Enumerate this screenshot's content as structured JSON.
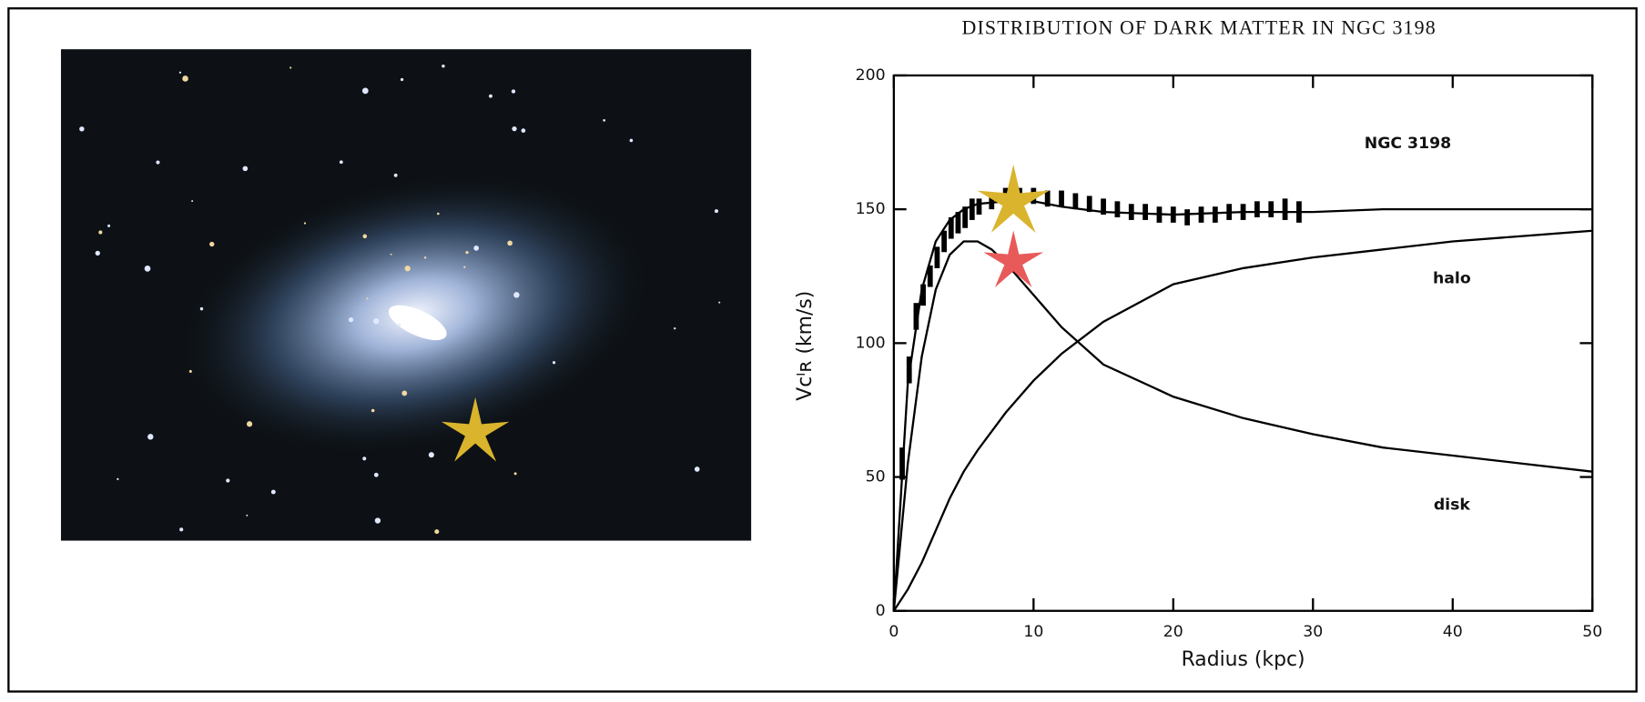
{
  "chart_data": {
    "type": "line",
    "title": "DISTRIBUTION OF DARK MATTER IN NGC 3198",
    "xlabel": "Radius (kpc)",
    "ylabel": "Vᴄᴵʀ (km/s)",
    "annotation": "NGC 3198",
    "xlim": [
      0,
      50
    ],
    "xticks": [
      0,
      10,
      20,
      30,
      40,
      50
    ],
    "ylim": [
      0,
      200
    ],
    "yticks": [
      0,
      50,
      100,
      150,
      200
    ],
    "series": [
      {
        "style": "errorbar",
        "color": "#000000",
        "x": [
          0.6,
          1.1,
          1.6,
          2.1,
          2.6,
          3.1,
          3.6,
          4.1,
          4.6,
          5.1,
          5.6,
          6.1,
          7,
          8,
          9,
          10,
          11,
          12,
          13,
          14,
          15,
          16,
          17,
          18,
          19,
          20,
          21,
          22,
          23,
          24,
          25,
          26,
          27,
          28,
          29
        ],
        "values": [
          55,
          90,
          110,
          118,
          125,
          132,
          138,
          143,
          145,
          147,
          150,
          151,
          153,
          155,
          155,
          155,
          154,
          154,
          153,
          152,
          151,
          150,
          149,
          149,
          148,
          148,
          147,
          148,
          148,
          149,
          149,
          150,
          150,
          150,
          149
        ],
        "errors": [
          6,
          5,
          5,
          4,
          4,
          4,
          4,
          4,
          4,
          4,
          4,
          3,
          3,
          3,
          3,
          3,
          3,
          3,
          3,
          3,
          3,
          3,
          3,
          3,
          3,
          3,
          3,
          3,
          3,
          3,
          3,
          3,
          3,
          4,
          4
        ]
      },
      {
        "style": "line",
        "color": "#000000",
        "x": [
          0,
          1,
          2,
          3,
          4,
          5,
          6,
          8,
          10,
          12,
          15,
          20,
          25,
          30,
          35,
          40,
          45,
          50
        ],
        "values": [
          0,
          85,
          120,
          138,
          146,
          150,
          152,
          153,
          153,
          151,
          149,
          148,
          149,
          149,
          150,
          150,
          150,
          150
        ]
      },
      {
        "name": "halo",
        "style": "line",
        "color": "#000000",
        "x": [
          0,
          1,
          2,
          3,
          4,
          5,
          6,
          8,
          10,
          12,
          15,
          20,
          25,
          30,
          35,
          40,
          45,
          50
        ],
        "values": [
          0,
          8,
          18,
          30,
          42,
          52,
          60,
          74,
          86,
          96,
          108,
          122,
          128,
          132,
          135,
          138,
          140,
          142
        ]
      },
      {
        "name": "disk",
        "style": "line",
        "color": "#000000",
        "x": [
          0,
          1,
          2,
          3,
          4,
          5,
          6,
          7,
          8,
          10,
          12,
          15,
          20,
          25,
          30,
          35,
          40,
          45,
          50
        ],
        "values": [
          0,
          55,
          95,
          120,
          133,
          138,
          138,
          135,
          130,
          118,
          106,
          92,
          80,
          72,
          66,
          61,
          58,
          55,
          52
        ]
      }
    ]
  }
}
